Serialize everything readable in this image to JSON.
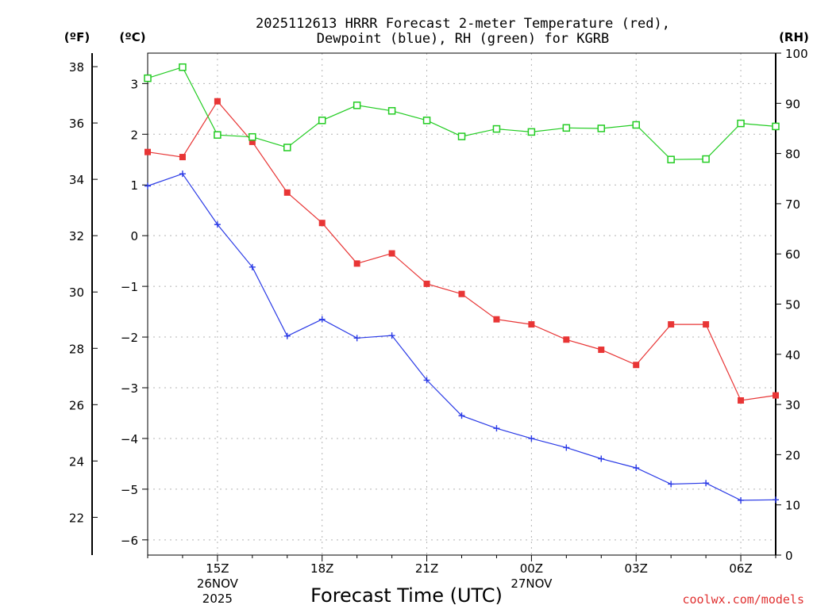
{
  "chart_data": {
    "type": "line",
    "title_lines": [
      "2025112613 HRRR Forecast 2-meter Temperature (red),",
      "Dewpoint (blue), RH (green) for KGRB"
    ],
    "unit_labels": {
      "fahrenheit": "(ºF)",
      "celsius": "(ºC)",
      "rh": "(RH)"
    },
    "xlabel": "Forecast Time (UTC)",
    "credit": "coolwx.com/models",
    "x_hours_range": [
      13,
      31
    ],
    "x_ticks": [
      {
        "hour": 15,
        "label": "15Z"
      },
      {
        "hour": 18,
        "label": "18Z"
      },
      {
        "hour": 21,
        "label": "21Z"
      },
      {
        "hour": 24,
        "label": "00Z"
      },
      {
        "hour": 27,
        "label": "03Z"
      },
      {
        "hour": 30,
        "label": "06Z"
      }
    ],
    "date_labels": [
      {
        "hour": 15,
        "lines": [
          "26NOV",
          "2025"
        ]
      },
      {
        "hour": 24,
        "lines": [
          "27NOV"
        ]
      }
    ],
    "celsius_axis": {
      "range": [
        -6.3,
        3.6
      ],
      "ticks": [
        3,
        2,
        1,
        0,
        -1,
        -2,
        -3,
        -4,
        -5,
        -6
      ]
    },
    "fahrenheit_axis": {
      "ticks": [
        38,
        36,
        34,
        32,
        30,
        28,
        26,
        24,
        22
      ]
    },
    "rh_axis": {
      "range": [
        0,
        100
      ],
      "ticks": [
        100,
        90,
        80,
        70,
        60,
        50,
        40,
        30,
        20,
        10,
        0
      ]
    },
    "hours": [
      13,
      14,
      15,
      16,
      17,
      18,
      19,
      20,
      21,
      22,
      23,
      24,
      25,
      26,
      27,
      28,
      29,
      30,
      31
    ],
    "series": [
      {
        "name": "Temperature",
        "axis": "celsius",
        "color": "#e83535",
        "marker": "filled-square",
        "values": [
          1.65,
          1.55,
          2.65,
          1.85,
          0.85,
          0.25,
          -0.55,
          -0.35,
          -0.95,
          -1.15,
          -1.65,
          -1.75,
          -2.05,
          -2.25,
          -2.55,
          -1.75,
          -1.75,
          -3.25,
          -3.15
        ]
      },
      {
        "name": "Dewpoint",
        "axis": "celsius",
        "color": "#2a3ae6",
        "marker": "plus",
        "values": [
          0.98,
          1.22,
          0.22,
          -0.62,
          -1.98,
          -1.65,
          -2.02,
          -1.97,
          -2.85,
          -3.55,
          -3.8,
          -4.0,
          -4.18,
          -4.4,
          -4.58,
          -4.9,
          -4.88,
          -5.22,
          -5.21
        ]
      },
      {
        "name": "RH",
        "axis": "rh",
        "color": "#22cc22",
        "marker": "open-square",
        "values": [
          95.0,
          97.2,
          83.7,
          83.3,
          81.2,
          86.6,
          89.6,
          88.5,
          86.6,
          83.4,
          84.9,
          84.3,
          85.1,
          85.0,
          85.7,
          78.8,
          78.9,
          86.0,
          85.4
        ]
      }
    ]
  }
}
